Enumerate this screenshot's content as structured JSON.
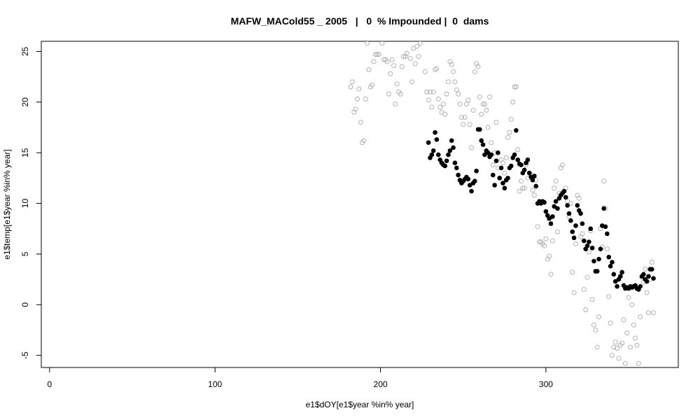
{
  "chart_data": {
    "type": "scatter",
    "title": "MAFW_MACold55 _ 2005   |   0  % Impounded |  0  dams",
    "xlabel": "e1$dOY[e1$year %in% year]",
    "ylabel": "e1$temp[e1$year %in% year]",
    "xlim": [
      -5,
      380
    ],
    "ylim": [
      -6.2,
      26
    ],
    "xticks": [
      0,
      100,
      200,
      300
    ],
    "yticks": [
      -5,
      0,
      5,
      10,
      15,
      20,
      25
    ],
    "grid": false,
    "legend": "none",
    "series": [
      {
        "style": "open-circle",
        "color": "#aaaaaa",
        "points": [
          [
            182,
            21.5
          ],
          [
            183,
            22.0
          ],
          [
            184,
            19.0
          ],
          [
            185,
            19.3
          ],
          [
            186,
            20.3
          ],
          [
            187,
            21.3
          ],
          [
            188,
            18.0
          ],
          [
            189,
            16.0
          ],
          [
            190,
            16.2
          ],
          [
            191,
            20.3
          ],
          [
            192,
            25.8
          ],
          [
            193,
            23.2
          ],
          [
            194,
            21.5
          ],
          [
            195,
            21.7
          ],
          [
            196,
            24.0
          ],
          [
            197,
            24.7
          ],
          [
            198,
            24.7
          ],
          [
            199,
            24.7
          ],
          [
            201,
            25.8
          ],
          [
            202,
            24.2
          ],
          [
            203,
            24.2
          ],
          [
            204,
            24.0
          ],
          [
            205,
            20.8
          ],
          [
            206,
            22.8
          ],
          [
            207,
            24.2
          ],
          [
            208,
            23.6
          ],
          [
            209,
            19.8
          ],
          [
            210,
            21.8
          ],
          [
            211,
            21.0
          ],
          [
            212,
            20.8
          ],
          [
            213,
            23.5
          ],
          [
            214,
            24.5
          ],
          [
            215,
            24.5
          ],
          [
            216,
            24.8
          ],
          [
            217,
            26.5
          ],
          [
            218,
            24.3
          ],
          [
            219,
            22.0
          ],
          [
            220,
            25.3
          ],
          [
            221,
            23.8
          ],
          [
            222,
            25.5
          ],
          [
            223,
            24.5
          ],
          [
            224,
            25.8
          ],
          [
            227,
            23.0
          ],
          [
            228,
            21.0
          ],
          [
            229,
            20.2
          ],
          [
            230,
            21.0
          ],
          [
            231,
            19.5
          ],
          [
            232,
            21.0
          ],
          [
            233,
            23.2
          ],
          [
            234,
            23.3
          ],
          [
            235,
            20.3
          ],
          [
            236,
            19.5
          ],
          [
            237,
            19.0
          ],
          [
            238,
            19.8
          ],
          [
            239,
            18.8
          ],
          [
            240,
            20.8
          ],
          [
            241,
            22.0
          ],
          [
            242,
            24.0
          ],
          [
            243,
            23.7
          ],
          [
            244,
            23.0
          ],
          [
            245,
            22.0
          ],
          [
            246,
            21.2
          ],
          [
            247,
            20.8
          ],
          [
            248,
            19.8
          ],
          [
            249,
            18.5
          ],
          [
            250,
            17.8
          ],
          [
            251,
            18.5
          ],
          [
            252,
            19.8
          ],
          [
            253,
            20.2
          ],
          [
            254,
            17.8
          ],
          [
            255,
            15.5
          ],
          [
            256,
            19.2
          ],
          [
            257,
            23.0
          ],
          [
            258,
            23.8
          ],
          [
            259,
            23.5
          ],
          [
            260,
            20.5
          ],
          [
            261,
            18.8
          ],
          [
            262,
            19.8
          ],
          [
            263,
            19.8
          ],
          [
            264,
            19.2
          ],
          [
            265,
            17.5
          ],
          [
            266,
            20.5
          ],
          [
            267,
            16.0
          ],
          [
            268,
            13.8
          ],
          [
            269,
            15.0
          ],
          [
            270,
            18.0
          ],
          [
            271,
            13.5
          ],
          [
            272,
            12.5
          ],
          [
            273,
            14.3
          ],
          [
            274,
            14.0
          ],
          [
            275,
            13.0
          ],
          [
            276,
            14.5
          ],
          [
            277,
            16.5
          ],
          [
            278,
            17.0
          ],
          [
            279,
            18.3
          ],
          [
            280,
            20.0
          ],
          [
            281,
            21.5
          ],
          [
            282,
            21.5
          ],
          [
            283,
            15.3
          ],
          [
            284,
            11.2
          ],
          [
            285,
            12.2
          ],
          [
            286,
            11.5
          ],
          [
            287,
            11.5
          ],
          [
            288,
            13.8
          ],
          [
            289,
            12.5
          ],
          [
            290,
            13.0
          ],
          [
            291,
            12.8
          ],
          [
            292,
            11.3
          ],
          [
            293,
            10.8
          ],
          [
            294,
            12.3
          ],
          [
            295,
            7.7
          ],
          [
            296,
            6.2
          ],
          [
            297,
            6.2
          ],
          [
            298,
            6.0
          ],
          [
            299,
            5.8
          ],
          [
            300,
            6.5
          ],
          [
            301,
            4.5
          ],
          [
            302,
            4.8
          ],
          [
            303,
            3.0
          ],
          [
            304,
            6.3
          ],
          [
            305,
            11.5
          ],
          [
            306,
            12.2
          ],
          [
            307,
            7.2
          ],
          [
            308,
            11.0
          ],
          [
            309,
            13.5
          ],
          [
            310,
            13.8
          ],
          [
            311,
            11.2
          ],
          [
            312,
            11.5
          ],
          [
            313,
            10.2
          ],
          [
            314,
            8.7
          ],
          [
            315,
            10.0
          ],
          [
            316,
            3.2
          ],
          [
            317,
            1.2
          ],
          [
            318,
            6.0
          ],
          [
            319,
            10.8
          ],
          [
            320,
            10.5
          ],
          [
            321,
            6.7
          ],
          [
            322,
            7.0
          ],
          [
            323,
            1.5
          ],
          [
            324,
            -0.5
          ],
          [
            325,
            2.7
          ],
          [
            326,
            5.2
          ],
          [
            327,
            7.3
          ],
          [
            328,
            0.5
          ],
          [
            329,
            -2.0
          ],
          [
            330,
            -2.5
          ],
          [
            331,
            -4.2
          ],
          [
            332,
            -1.2
          ],
          [
            333,
            7.5
          ],
          [
            334,
            5.7
          ],
          [
            335,
            12.2
          ],
          [
            336,
            9.5
          ],
          [
            337,
            5.5
          ],
          [
            338,
            0.8
          ],
          [
            339,
            -1.8
          ],
          [
            340,
            -5.0
          ],
          [
            341,
            -4.2
          ],
          [
            342,
            -3.7
          ],
          [
            343,
            -4.3
          ],
          [
            344,
            -5.3
          ],
          [
            345,
            -4.0
          ],
          [
            346,
            -3.8
          ],
          [
            347,
            -1.5
          ],
          [
            348,
            -5.8
          ],
          [
            349,
            -2.8
          ],
          [
            350,
            0.7
          ],
          [
            351,
            -4.2
          ],
          [
            352,
            0.0
          ],
          [
            353,
            -2.0
          ],
          [
            354,
            -3.3
          ],
          [
            355,
            -4.0
          ],
          [
            356,
            -5.8
          ],
          [
            357,
            -1.2
          ],
          [
            358,
            2.7
          ],
          [
            359,
            2.2
          ],
          [
            360,
            3.5
          ],
          [
            361,
            1.2
          ],
          [
            362,
            -0.8
          ],
          [
            363,
            2.5
          ],
          [
            364,
            4.2
          ],
          [
            365,
            -0.8
          ]
        ]
      },
      {
        "style": "filled-circle",
        "color": "#000000",
        "points": [
          [
            229,
            16.0
          ],
          [
            230,
            14.5
          ],
          [
            231,
            14.8
          ],
          [
            232,
            15.2
          ],
          [
            233,
            17.0
          ],
          [
            234,
            16.3
          ],
          [
            235,
            14.8
          ],
          [
            236,
            14.3
          ],
          [
            237,
            14.0
          ],
          [
            238,
            13.8
          ],
          [
            239,
            13.7
          ],
          [
            240,
            14.2
          ],
          [
            241,
            14.8
          ],
          [
            242,
            15.2
          ],
          [
            243,
            16.2
          ],
          [
            244,
            15.5
          ],
          [
            245,
            14.0
          ],
          [
            246,
            13.5
          ],
          [
            247,
            12.8
          ],
          [
            248,
            12.3
          ],
          [
            249,
            12.0
          ],
          [
            250,
            12.2
          ],
          [
            251,
            12.4
          ],
          [
            252,
            12.6
          ],
          [
            253,
            12.4
          ],
          [
            254,
            11.8
          ],
          [
            255,
            11.2
          ],
          [
            256,
            12.0
          ],
          [
            257,
            12.2
          ],
          [
            258,
            13.2
          ],
          [
            259,
            17.3
          ],
          [
            260,
            17.3
          ],
          [
            261,
            16.2
          ],
          [
            262,
            15.8
          ],
          [
            263,
            14.8
          ],
          [
            264,
            15.2
          ],
          [
            265,
            15.0
          ],
          [
            266,
            14.6
          ],
          [
            267,
            14.8
          ],
          [
            268,
            12.8
          ],
          [
            269,
            11.8
          ],
          [
            270,
            14.2
          ],
          [
            271,
            15.0
          ],
          [
            272,
            12.5
          ],
          [
            273,
            13.5
          ],
          [
            274,
            12.0
          ],
          [
            275,
            11.5
          ],
          [
            276,
            12.3
          ],
          [
            277,
            12.5
          ],
          [
            278,
            13.5
          ],
          [
            279,
            13.7
          ],
          [
            280,
            14.5
          ],
          [
            281,
            14.8
          ],
          [
            282,
            17.2
          ],
          [
            283,
            14.3
          ],
          [
            284,
            13.9
          ],
          [
            285,
            13.8
          ],
          [
            286,
            13.0
          ],
          [
            287,
            13.3
          ],
          [
            288,
            14.0
          ],
          [
            289,
            14.3
          ],
          [
            290,
            13.0
          ],
          [
            291,
            12.6
          ],
          [
            292,
            12.3
          ],
          [
            293,
            12.7
          ],
          [
            294,
            11.7
          ],
          [
            295,
            10.0
          ],
          [
            296,
            10.2
          ],
          [
            297,
            10.0
          ],
          [
            298,
            10.2
          ],
          [
            299,
            10.1
          ],
          [
            300,
            9.2
          ],
          [
            301,
            8.8
          ],
          [
            302,
            8.5
          ],
          [
            303,
            8.0
          ],
          [
            304,
            8.7
          ],
          [
            305,
            9.7
          ],
          [
            306,
            10.2
          ],
          [
            307,
            9.5
          ],
          [
            308,
            10.5
          ],
          [
            309,
            10.8
          ],
          [
            310,
            11.0
          ],
          [
            311,
            11.2
          ],
          [
            312,
            10.6
          ],
          [
            313,
            9.8
          ],
          [
            314,
            9.0
          ],
          [
            315,
            8.3
          ],
          [
            316,
            7.2
          ],
          [
            317,
            6.6
          ],
          [
            318,
            7.8
          ],
          [
            319,
            9.8
          ],
          [
            320,
            9.3
          ],
          [
            321,
            9.0
          ],
          [
            322,
            8.0
          ],
          [
            323,
            6.3
          ],
          [
            324,
            5.5
          ],
          [
            325,
            5.8
          ],
          [
            326,
            6.2
          ],
          [
            327,
            7.5
          ],
          [
            328,
            5.6
          ],
          [
            329,
            4.3
          ],
          [
            330,
            3.3
          ],
          [
            331,
            3.3
          ],
          [
            332,
            4.5
          ],
          [
            333,
            5.5
          ],
          [
            334,
            7.8
          ],
          [
            335,
            9.5
          ],
          [
            336,
            7.7
          ],
          [
            337,
            7.0
          ],
          [
            338,
            4.7
          ],
          [
            339,
            3.8
          ],
          [
            340,
            4.2
          ],
          [
            341,
            3.0
          ],
          [
            342,
            2.3
          ],
          [
            343,
            1.8
          ],
          [
            344,
            2.5
          ],
          [
            345,
            2.8
          ],
          [
            346,
            3.2
          ],
          [
            347,
            1.9
          ],
          [
            348,
            1.6
          ],
          [
            349,
            1.7
          ],
          [
            350,
            1.6
          ],
          [
            351,
            1.8
          ],
          [
            352,
            1.7
          ],
          [
            353,
            1.8
          ],
          [
            354,
            1.9
          ],
          [
            355,
            1.6
          ],
          [
            356,
            1.5
          ],
          [
            357,
            1.8
          ],
          [
            358,
            2.8
          ],
          [
            359,
            3.0
          ],
          [
            360,
            2.5
          ],
          [
            361,
            2.3
          ],
          [
            362,
            2.8
          ],
          [
            363,
            3.5
          ],
          [
            364,
            3.5
          ],
          [
            365,
            2.6
          ]
        ]
      }
    ]
  }
}
